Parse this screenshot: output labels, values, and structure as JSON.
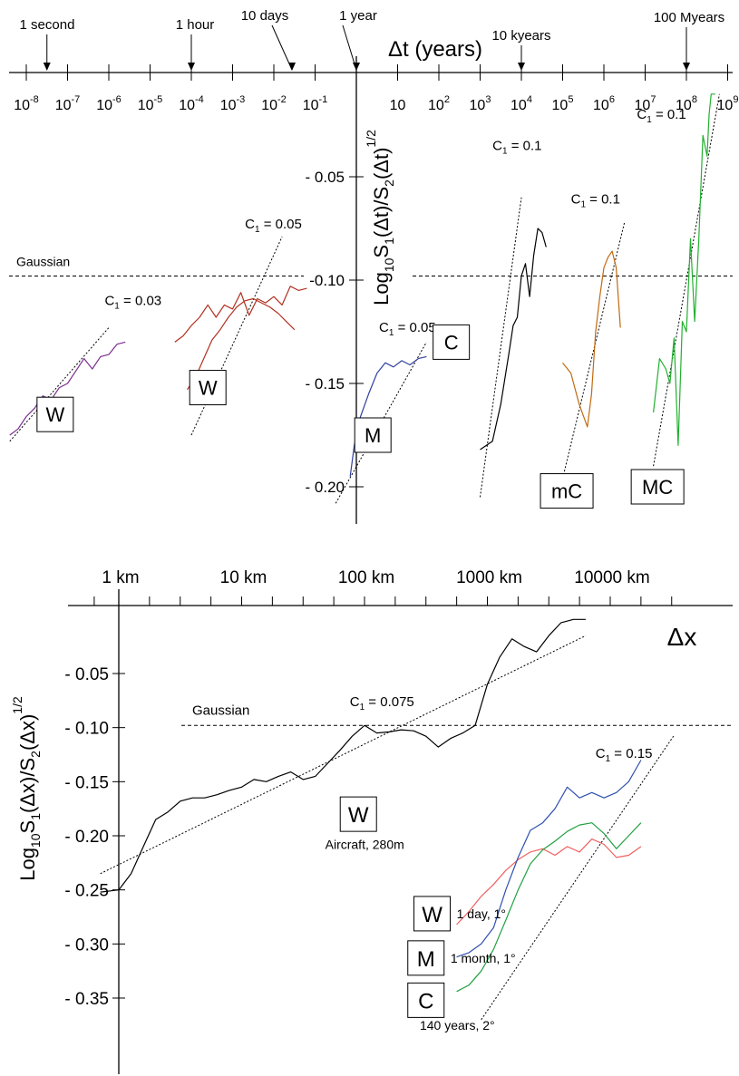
{
  "chart_data": [
    {
      "type": "line",
      "panel": "top",
      "axis_title": "Δt (years)",
      "ylabel_parts": [
        "Log",
        "10",
        "S",
        "1",
        "(Δt)/",
        "S",
        "2",
        "(Δt)",
        "1/2"
      ],
      "x_scale": "log10",
      "xlim": [
        -8.5,
        9.3
      ],
      "ylim": [
        -0.225,
        -0.03
      ],
      "x_tick_labels": [
        {
          "base": "10",
          "exp": "-8",
          "x": -8
        },
        {
          "base": "10",
          "exp": "-7",
          "x": -7
        },
        {
          "base": "10",
          "exp": "-6",
          "x": -6
        },
        {
          "base": "10",
          "exp": "-5",
          "x": -5
        },
        {
          "base": "10",
          "exp": "-4",
          "x": -4
        },
        {
          "base": "10",
          "exp": "-3",
          "x": -3
        },
        {
          "base": "10",
          "exp": "-2",
          "x": -2
        },
        {
          "base": "10",
          "exp": "-1",
          "x": -1
        },
        {
          "base": "10",
          "exp": "",
          "x": 1
        },
        {
          "base": "10",
          "exp": "2",
          "x": 2
        },
        {
          "base": "10",
          "exp": "3",
          "x": 3
        },
        {
          "base": "10",
          "exp": "4",
          "x": 4
        },
        {
          "base": "10",
          "exp": "5",
          "x": 5
        },
        {
          "base": "10",
          "exp": "6",
          "x": 6
        },
        {
          "base": "10",
          "exp": "7",
          "x": 7
        },
        {
          "base": "10",
          "exp": "8",
          "x": 8
        },
        {
          "base": "10",
          "exp": "9",
          "x": 9
        }
      ],
      "y_ticks": [
        -0.05,
        -0.1,
        -0.15,
        -0.2
      ],
      "y_tick_labels": [
        "- 0.05",
        "-0.10",
        "- 0.15",
        "- 0.20"
      ],
      "time_markers": [
        {
          "label": "1 second",
          "x": -7.5
        },
        {
          "label": "1 hour",
          "x": -4.0
        },
        {
          "label": "10 days",
          "x": -1.56
        },
        {
          "label": "1 year",
          "x": 0
        },
        {
          "label": "10 kyears",
          "x": 4.0
        },
        {
          "label": "100 Myears",
          "x": 8.0
        }
      ],
      "gaussian_label": "Gaussian",
      "gaussian_y": -0.098,
      "series": [
        {
          "name": "W",
          "color": "#7b2d8e",
          "x": [
            -8.4,
            -8.2,
            -8.0,
            -7.8,
            -7.6,
            -7.4,
            -7.2,
            -7.0,
            -6.8,
            -6.6,
            -6.4,
            -6.2,
            -6.0,
            -5.8,
            -5.6
          ],
          "y": [
            -0.175,
            -0.172,
            -0.166,
            -0.162,
            -0.156,
            -0.158,
            -0.152,
            -0.15,
            -0.144,
            -0.138,
            -0.143,
            -0.137,
            -0.136,
            -0.131,
            -0.13
          ]
        },
        {
          "name": "W",
          "color": "#b03020",
          "x": [
            -4.4,
            -4.2,
            -4.0,
            -3.8,
            -3.6,
            -3.4,
            -3.2,
            -3.0,
            -2.8,
            -2.6,
            -2.4,
            -2.2,
            -2.0,
            -1.8,
            -1.6,
            -1.4,
            -1.2
          ],
          "y": [
            -0.13,
            -0.127,
            -0.122,
            -0.118,
            -0.112,
            -0.118,
            -0.112,
            -0.114,
            -0.106,
            -0.117,
            -0.109,
            -0.111,
            -0.108,
            -0.112,
            -0.103,
            -0.105,
            -0.104
          ]
        },
        {
          "name": "W",
          "color": "#b03020",
          "x": [
            -4.1,
            -3.9,
            -3.7,
            -3.5,
            -3.3,
            -3.1,
            -2.9,
            -2.7,
            -2.5,
            -2.3,
            -2.1,
            -1.9,
            -1.7,
            -1.5
          ],
          "y": [
            -0.153,
            -0.147,
            -0.138,
            -0.129,
            -0.124,
            -0.118,
            -0.113,
            -0.11,
            -0.109,
            -0.111,
            -0.113,
            -0.116,
            -0.12,
            -0.124
          ]
        },
        {
          "name": "M",
          "color": "#3040a0",
          "x": [
            -0.15,
            -0.05,
            0.1,
            0.3,
            0.5,
            0.7,
            0.9,
            1.1,
            1.3,
            1.5,
            1.7
          ],
          "y": [
            -0.195,
            -0.18,
            -0.166,
            -0.155,
            -0.145,
            -0.14,
            -0.142,
            -0.139,
            -0.141,
            -0.138,
            -0.137
          ]
        },
        {
          "name": "C",
          "color": "#000000",
          "x": [
            3.0,
            3.3,
            3.5,
            3.7,
            3.8,
            3.9,
            4.0,
            4.1,
            4.2,
            4.3,
            4.4,
            4.5,
            4.6
          ],
          "y": [
            -0.182,
            -0.178,
            -0.16,
            -0.135,
            -0.122,
            -0.118,
            -0.098,
            -0.092,
            -0.108,
            -0.088,
            -0.075,
            -0.077,
            -0.084
          ]
        },
        {
          "name": "mC",
          "color": "#c06a10",
          "x": [
            5.0,
            5.2,
            5.4,
            5.6,
            5.7,
            5.8,
            5.9,
            6.0,
            6.1,
            6.2,
            6.3,
            6.4
          ],
          "y": [
            -0.14,
            -0.145,
            -0.16,
            -0.171,
            -0.155,
            -0.125,
            -0.108,
            -0.094,
            -0.089,
            -0.086,
            -0.094,
            -0.123
          ]
        },
        {
          "name": "MC",
          "color": "#22b030",
          "x": [
            7.2,
            7.35,
            7.5,
            7.6,
            7.7,
            7.8,
            7.9,
            8.0,
            8.1,
            8.2,
            8.3,
            8.4,
            8.5,
            8.55,
            8.6,
            8.7
          ],
          "y": [
            -0.164,
            -0.138,
            -0.143,
            -0.15,
            -0.128,
            -0.18,
            -0.12,
            -0.125,
            -0.08,
            -0.12,
            -0.08,
            -0.03,
            -0.04,
            -0.02,
            -0.01,
            -0.01
          ]
        }
      ],
      "fit_lines": [
        {
          "label": "C",
          "sub": "1",
          "value": "= 0.03",
          "x": [
            -8.4,
            -6.0
          ],
          "y": [
            -0.178,
            -0.123
          ],
          "label_at": [
            -6.1,
            -0.112
          ]
        },
        {
          "label": "C",
          "sub": "1",
          "value": "= 0.05",
          "x": [
            -4.0,
            -1.8
          ],
          "y": [
            -0.175,
            -0.079
          ],
          "label_at": [
            -2.7,
            -0.075
          ]
        },
        {
          "label": "C",
          "sub": "1",
          "value": "= 0.05",
          "x": [
            -0.5,
            1.7
          ],
          "y": [
            -0.208,
            -0.13
          ],
          "label_at": [
            0.55,
            -0.125
          ]
        },
        {
          "label": "C",
          "sub": "1",
          "value": "= 0.1",
          "x": [
            3.0,
            4.0
          ],
          "y": [
            -0.205,
            -0.06
          ],
          "label_at": [
            3.3,
            -0.037
          ]
        },
        {
          "label": "C",
          "sub": "1",
          "value": "= 0.1",
          "x": [
            5.0,
            6.5
          ],
          "y": [
            -0.196,
            -0.072
          ],
          "label_at": [
            5.2,
            -0.063
          ]
        },
        {
          "label": "C",
          "sub": "1",
          "value": "= 0.1",
          "x": [
            7.2,
            8.8
          ],
          "y": [
            -0.19,
            -0.01
          ],
          "label_at": [
            6.8,
            -0.022
          ]
        }
      ],
      "series_boxes": [
        {
          "label": "W",
          "x": -7.3,
          "y": -0.165
        },
        {
          "label": "W",
          "x": -3.6,
          "y": -0.152
        },
        {
          "label": "M",
          "x": 0.4,
          "y": -0.175
        },
        {
          "label": "C",
          "x": 2.3,
          "y": -0.13
        },
        {
          "label": "mC",
          "x": 5.1,
          "y": -0.202
        },
        {
          "label": "MC",
          "x": 7.3,
          "y": -0.2
        }
      ]
    },
    {
      "type": "line",
      "panel": "bottom",
      "axis_title": "Δx",
      "ylabel_parts": [
        "Log",
        "10",
        "S",
        "1",
        "(Δx)/",
        "S",
        "2",
        "(Δx)",
        "1/2"
      ],
      "x_scale": "log10_km",
      "xlim": [
        -0.2,
        4.3
      ],
      "ylim": [
        -0.37,
        -0.02
      ],
      "x_tick_labels": [
        {
          "label": "1 km",
          "x": 0
        },
        {
          "label": "10 km",
          "x": 1
        },
        {
          "label": "100 km",
          "x": 2
        },
        {
          "label": "1000 km",
          "x": 3
        },
        {
          "label": "10000 km",
          "x": 4
        }
      ],
      "y_ticks": [
        -0.05,
        -0.1,
        -0.15,
        -0.2,
        -0.25,
        -0.3,
        -0.35
      ],
      "y_tick_labels": [
        "- 0.05",
        "- 0.10",
        "- 0.15",
        "- 0.20",
        "- 0.25",
        "- 0.30",
        "- 0.35"
      ],
      "gaussian_label": "Gaussian",
      "gaussian_y": -0.098,
      "series": [
        {
          "name": "W",
          "color": "#000000",
          "x": [
            -0.15,
            0.0,
            0.1,
            0.2,
            0.3,
            0.4,
            0.5,
            0.6,
            0.7,
            0.8,
            0.9,
            1.0,
            1.1,
            1.2,
            1.3,
            1.4,
            1.5,
            1.6,
            1.7,
            1.8,
            1.9,
            2.0,
            2.1,
            2.2,
            2.3,
            2.4,
            2.5,
            2.6,
            2.7,
            2.8,
            2.9,
            3.0,
            3.1,
            3.2,
            3.3,
            3.4,
            3.5,
            3.6,
            3.7,
            3.8
          ],
          "y": [
            -0.252,
            -0.25,
            -0.235,
            -0.21,
            -0.185,
            -0.178,
            -0.168,
            -0.165,
            -0.165,
            -0.162,
            -0.158,
            -0.155,
            -0.148,
            -0.15,
            -0.145,
            -0.141,
            -0.148,
            -0.145,
            -0.133,
            -0.121,
            -0.108,
            -0.098,
            -0.105,
            -0.104,
            -0.102,
            -0.103,
            -0.108,
            -0.118,
            -0.11,
            -0.105,
            -0.098,
            -0.06,
            -0.035,
            -0.018,
            -0.025,
            -0.03,
            -0.015,
            -0.003,
            0.0,
            0.0
          ]
        },
        {
          "name": "W",
          "color": "#f06060",
          "x": [
            2.75,
            2.85,
            2.95,
            3.05,
            3.15,
            3.25,
            3.35,
            3.45,
            3.55,
            3.65,
            3.75,
            3.85,
            3.95,
            4.05,
            4.15,
            4.25
          ],
          "y": [
            -0.282,
            -0.27,
            -0.256,
            -0.245,
            -0.232,
            -0.222,
            -0.215,
            -0.212,
            -0.218,
            -0.21,
            -0.215,
            -0.203,
            -0.208,
            -0.22,
            -0.218,
            -0.21
          ]
        },
        {
          "name": "M",
          "color": "#3050b0",
          "x": [
            2.75,
            2.85,
            2.95,
            3.05,
            3.15,
            3.25,
            3.35,
            3.45,
            3.55,
            3.65,
            3.75,
            3.85,
            3.95,
            4.05,
            4.15,
            4.25
          ],
          "y": [
            -0.312,
            -0.308,
            -0.3,
            -0.285,
            -0.25,
            -0.22,
            -0.195,
            -0.188,
            -0.175,
            -0.155,
            -0.165,
            -0.16,
            -0.165,
            -0.16,
            -0.15,
            -0.13
          ]
        },
        {
          "name": "C",
          "color": "#20a040",
          "x": [
            2.75,
            2.85,
            2.95,
            3.05,
            3.15,
            3.25,
            3.35,
            3.45,
            3.55,
            3.65,
            3.75,
            3.85,
            3.95,
            4.05,
            4.15,
            4.25
          ],
          "y": [
            -0.344,
            -0.338,
            -0.325,
            -0.305,
            -0.278,
            -0.25,
            -0.226,
            -0.213,
            -0.205,
            -0.196,
            -0.19,
            -0.188,
            -0.198,
            -0.212,
            -0.2,
            -0.188
          ]
        }
      ],
      "fit_lines": [
        {
          "label": "C",
          "sub": "1",
          "value": "= 0.075",
          "x": [
            -0.15,
            3.8
          ],
          "y": [
            -0.235,
            -0.015
          ],
          "label_at": [
            1.88,
            -0.08
          ]
        },
        {
          "label": "C",
          "sub": "1",
          "value": "= 0.15",
          "x": [
            2.95,
            4.52
          ],
          "y": [
            -0.37,
            -0.107
          ],
          "label_at": [
            3.88,
            -0.128
          ]
        }
      ],
      "series_boxes": [
        {
          "label": "W",
          "x": 1.95,
          "y": -0.18,
          "note": "Aircraft, 280m",
          "note_at": [
            1.68,
            -0.208
          ]
        },
        {
          "label": "W",
          "x": 2.55,
          "y": -0.272,
          "note": "1 day, 1°",
          "note_at": [
            2.75,
            -0.272
          ]
        },
        {
          "label": "M",
          "x": 2.5,
          "y": -0.313,
          "note": "1 month, 1°",
          "note_at": [
            2.7,
            -0.313
          ]
        },
        {
          "label": "C",
          "x": 2.5,
          "y": -0.352,
          "note": "140 years, 2°",
          "note_at": [
            2.45,
            -0.375
          ]
        }
      ]
    }
  ]
}
